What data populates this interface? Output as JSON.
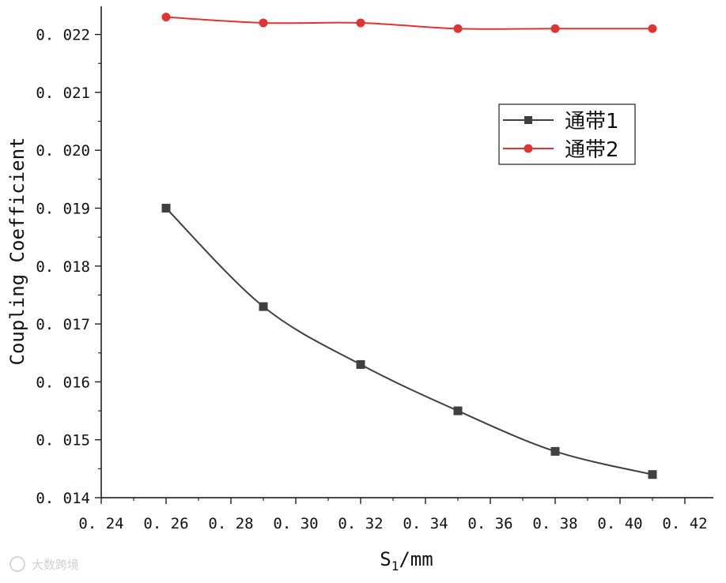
{
  "chart_data": {
    "type": "line",
    "xlabel_main": "S",
    "xlabel_sub": "1",
    "xlabel_unit": "/mm",
    "ylabel": "Coupling Coefficient",
    "xlim": [
      0.24,
      0.42
    ],
    "ylim": [
      0.014,
      0.0225
    ],
    "x_ticks": [
      "0.24",
      "0.26",
      "0.28",
      "0.30",
      "0.32",
      "0.34",
      "0.36",
      "0.38",
      "0.40",
      "0.42"
    ],
    "y_ticks": [
      "0.014",
      "0.015",
      "0.016",
      "0.017",
      "0.018",
      "0.019",
      "0.020",
      "0.021",
      "0.022"
    ],
    "x": [
      0.26,
      0.29,
      0.32,
      0.35,
      0.38,
      0.41
    ],
    "series": [
      {
        "name": "通带1",
        "marker": "square",
        "color": "#404040",
        "values": [
          0.019,
          0.0173,
          0.0163,
          0.0155,
          0.0148,
          0.0144
        ]
      },
      {
        "name": "通带2",
        "marker": "circle",
        "color": "#e03434",
        "values": [
          0.0223,
          0.0222,
          0.0222,
          0.0221,
          0.0221,
          0.0221
        ]
      }
    ],
    "legend_position": "upper-right",
    "grid": false
  },
  "watermark": {
    "text": "大数跨境"
  }
}
